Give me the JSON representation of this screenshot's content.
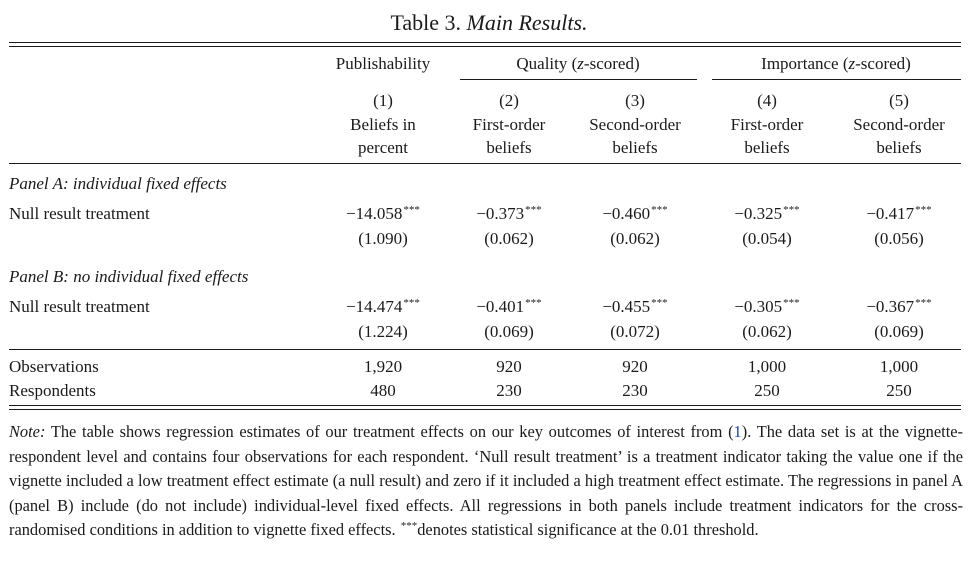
{
  "caption": {
    "label": "Table 3.",
    "title": "Main Results."
  },
  "groups": [
    {
      "label": "Publishability"
    },
    {
      "pre": "Quality (",
      "var": "z",
      "post": "-scored)"
    },
    {
      "pre": "Importance (",
      "var": "z",
      "post": "-scored)"
    }
  ],
  "columns": [
    {
      "num": "(1)",
      "line1": "Beliefs in",
      "line2": "percent"
    },
    {
      "num": "(2)",
      "line1": "First-order",
      "line2": "beliefs"
    },
    {
      "num": "(3)",
      "line1": "Second-order",
      "line2": "beliefs"
    },
    {
      "num": "(4)",
      "line1": "First-order",
      "line2": "beliefs"
    },
    {
      "num": "(5)",
      "line1": "Second-order",
      "line2": "beliefs"
    }
  ],
  "panels": [
    {
      "title": "Panel A: individual fixed effects",
      "row_label": "Null result treatment",
      "coefs": [
        "−14.058",
        "−0.373",
        "−0.460",
        "−0.325",
        "−0.417"
      ],
      "stars": [
        "***",
        "***",
        "***",
        "***",
        "***"
      ],
      "ses": [
        "(1.090)",
        "(0.062)",
        "(0.062)",
        "(0.054)",
        "(0.056)"
      ]
    },
    {
      "title": "Panel B: no individual fixed effects",
      "row_label": "Null result treatment",
      "coefs": [
        "−14.474",
        "−0.401",
        "−0.455",
        "−0.305",
        "−0.367"
      ],
      "stars": [
        "***",
        "***",
        "***",
        "***",
        "***"
      ],
      "ses": [
        "(1.224)",
        "(0.069)",
        "(0.072)",
        "(0.062)",
        "(0.069)"
      ]
    }
  ],
  "footer": [
    {
      "label": "Observations",
      "values": [
        "1,920",
        "920",
        "920",
        "1,000",
        "1,000"
      ]
    },
    {
      "label": "Respondents",
      "values": [
        "480",
        "230",
        "230",
        "250",
        "250"
      ]
    }
  ],
  "note": {
    "label": "Note:",
    "text_before_ref": " The table shows regression estimates of our treatment effects on our key outcomes of interest from (",
    "ref": "1",
    "text_after_ref": "). The data set is at the vignette-respondent level and contains four observations for each respondent. ‘Null result treatment’ is a treatment indicator taking the value one if the vignette included a low treatment effect estimate (a null result) and zero if it included a high treatment effect estimate. The regressions in panel A (panel B) include (do not include) individual-level fixed effects. All regressions in both panels include treatment indicators for the cross-randomised conditions in addition to vignette fixed effects. ",
    "stars": "***",
    "text_end": "denotes statistical significance at the 0.01 threshold."
  }
}
